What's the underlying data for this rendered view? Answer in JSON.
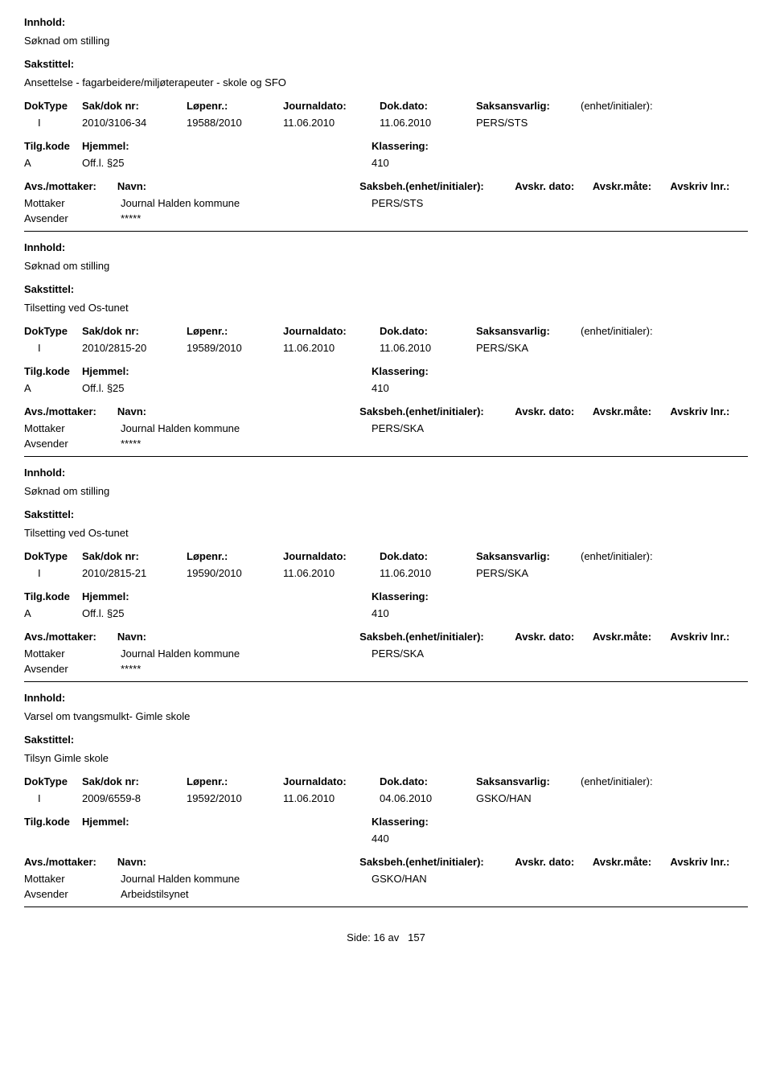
{
  "labels": {
    "innhold": "Innhold:",
    "sakstittel": "Sakstittel:",
    "doktype": "DokType",
    "sakdok": "Sak/dok nr:",
    "lopenr": "Løpenr.:",
    "journaldato": "Journaldato:",
    "dokdato": "Dok.dato:",
    "saksansvarlig": "Saksansvarlig:",
    "enhet": "(enhet/initialer):",
    "tilgkode": "Tilg.kode",
    "hjemmel": "Hjemmel:",
    "klassering": "Klassering:",
    "avsmottaker": "Avs./mottaker:",
    "navn": "Navn:",
    "saksbeh": "Saksbeh.(enhet/initialer):",
    "avskrdato": "Avskr. dato:",
    "avskrmate": "Avskr.måte:",
    "avskrivlnr": "Avskriv lnr.:",
    "mottaker": "Mottaker",
    "avsender": "Avsender"
  },
  "records": [
    {
      "innhold": "Søknad om stilling",
      "sakstittel": "Ansettelse - fagarbeidere/miljøterapeuter - skole og SFO",
      "doktype": "I",
      "sakdok": "2010/3106-34",
      "lopenr": "19588/2010",
      "journaldato": "11.06.2010",
      "dokdato": "11.06.2010",
      "saksansvarlig": "PERS/STS",
      "tilgkode": "A",
      "hjemmel": "Off.l. §25",
      "klassering": "410",
      "mottaker_navn": "Journal Halden kommune",
      "saksbeh": "PERS/STS",
      "avsender_navn": "*****"
    },
    {
      "innhold": "Søknad om stilling",
      "sakstittel": "Tilsetting ved Os-tunet",
      "doktype": "I",
      "sakdok": "2010/2815-20",
      "lopenr": "19589/2010",
      "journaldato": "11.06.2010",
      "dokdato": "11.06.2010",
      "saksansvarlig": "PERS/SKA",
      "tilgkode": "A",
      "hjemmel": "Off.l. §25",
      "klassering": "410",
      "mottaker_navn": "Journal Halden kommune",
      "saksbeh": "PERS/SKA",
      "avsender_navn": "*****"
    },
    {
      "innhold": "Søknad om stilling",
      "sakstittel": "Tilsetting ved Os-tunet",
      "doktype": "I",
      "sakdok": "2010/2815-21",
      "lopenr": "19590/2010",
      "journaldato": "11.06.2010",
      "dokdato": "11.06.2010",
      "saksansvarlig": "PERS/SKA",
      "tilgkode": "A",
      "hjemmel": "Off.l. §25",
      "klassering": "410",
      "mottaker_navn": "Journal Halden kommune",
      "saksbeh": "PERS/SKA",
      "avsender_navn": "*****"
    },
    {
      "innhold": "Varsel om tvangsmulkt- Gimle skole",
      "sakstittel": "Tilsyn Gimle skole",
      "doktype": "I",
      "sakdok": "2009/6559-8",
      "lopenr": "19592/2010",
      "journaldato": "11.06.2010",
      "dokdato": "04.06.2010",
      "saksansvarlig": "GSKO/HAN",
      "tilgkode": "",
      "hjemmel": "",
      "klassering": "440",
      "mottaker_navn": "Journal Halden kommune",
      "saksbeh": "GSKO/HAN",
      "avsender_navn": "Arbeidstilsynet"
    }
  ],
  "footer": {
    "side_label": "Side:",
    "page": "16",
    "av": "av",
    "total": "157"
  }
}
